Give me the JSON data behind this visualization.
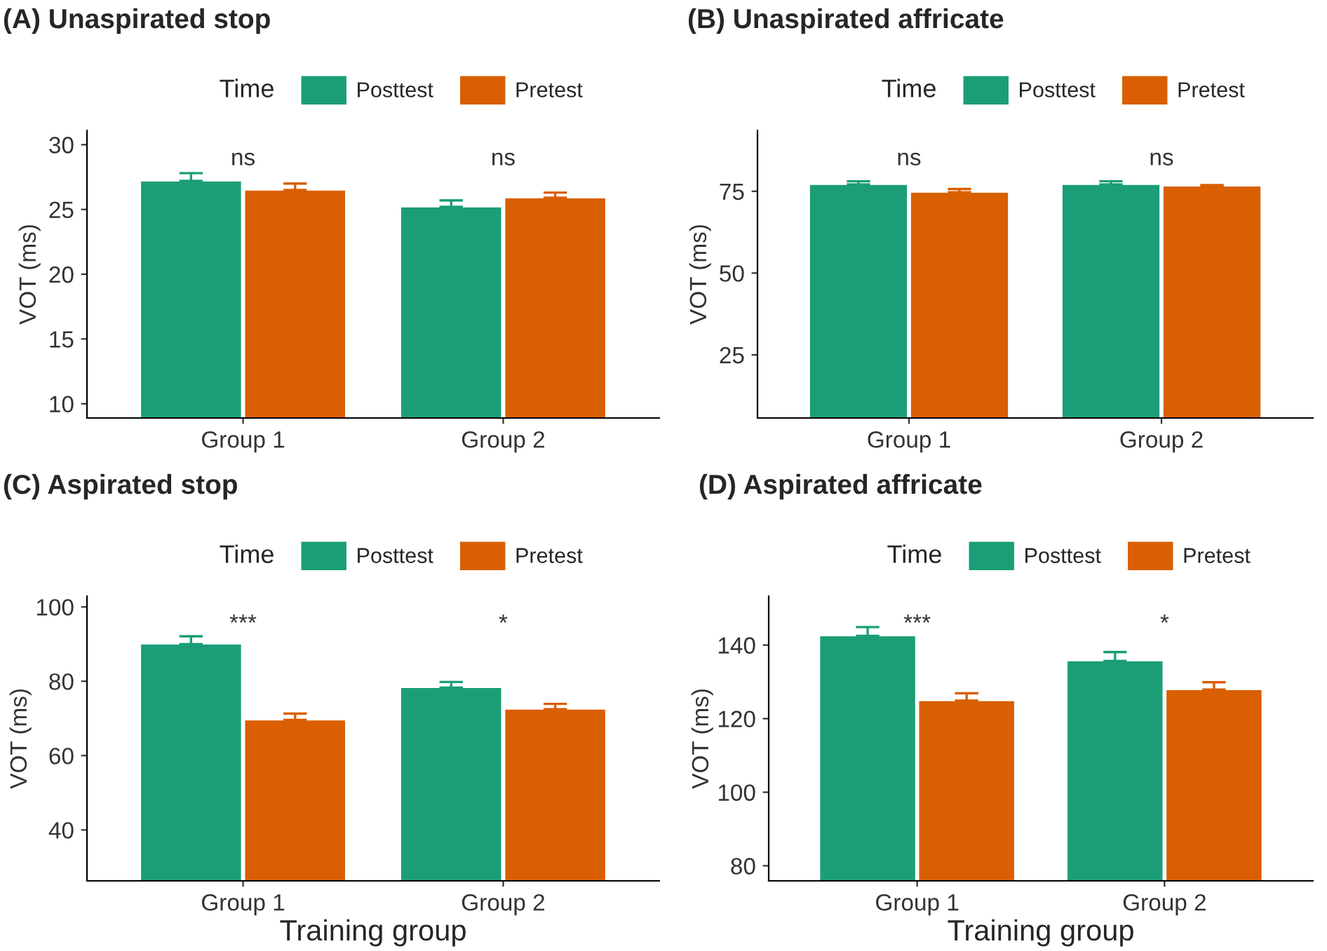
{
  "chart_data": [
    {
      "type": "bar",
      "title": "(A) Unaspirated stop",
      "ylabel": "VOT (ms)",
      "legend_title": "Time",
      "legend": "top",
      "grid": false,
      "categories": [
        "Group 1",
        "Group 2"
      ],
      "ylim": [
        8.9,
        31.1
      ],
      "yticks": [
        10,
        15,
        20,
        25,
        30
      ],
      "series": [
        {
          "name": "Posttest",
          "color": "#1b9e77",
          "values": [
            27.2,
            25.2
          ],
          "errors": [
            [
              27.2,
              27.8
            ],
            [
              25.2,
              25.7
            ]
          ]
        },
        {
          "name": "Pretest",
          "color": "#d95f02",
          "values": [
            26.5,
            25.9
          ],
          "errors": [
            [
              26.5,
              27.0
            ],
            [
              25.9,
              26.3
            ]
          ]
        }
      ],
      "annotations": [
        "ns",
        "ns"
      ]
    },
    {
      "type": "bar",
      "title": "(B) Unaspirated affricate",
      "ylabel": "VOT (ms)",
      "legend_title": "Time",
      "legend": "top",
      "grid": false,
      "categories": [
        "Group 1",
        "Group 2"
      ],
      "ylim": [
        5.7,
        93.6
      ],
      "yticks": [
        25,
        50,
        75
      ],
      "series": [
        {
          "name": "Posttest",
          "color": "#1b9e77",
          "values": [
            77.1,
            77.1
          ],
          "errors": [
            [
              77.1,
              78.1
            ],
            [
              77.1,
              78.1
            ]
          ]
        },
        {
          "name": "Pretest",
          "color": "#d95f02",
          "values": [
            74.7,
            76.6
          ],
          "errors": [
            [
              74.7,
              75.7
            ],
            [
              76.6,
              76.9
            ]
          ]
        }
      ],
      "annotations": [
        "ns",
        "ns"
      ]
    },
    {
      "type": "bar",
      "title": "(C) Aspirated stop",
      "xlabel": "Training group",
      "ylabel": "VOT (ms)",
      "legend_title": "Time",
      "legend": "top",
      "grid": false,
      "categories": [
        "Group 1",
        "Group 2"
      ],
      "ylim": [
        26.3,
        102.9
      ],
      "yticks": [
        40,
        60,
        80,
        100
      ],
      "series": [
        {
          "name": "Posttest",
          "color": "#1b9e77",
          "values": [
            90.0,
            78.3
          ],
          "errors": [
            [
              90.0,
              92.1
            ],
            [
              78.3,
              79.8
            ]
          ]
        },
        {
          "name": "Pretest",
          "color": "#d95f02",
          "values": [
            69.6,
            72.5
          ],
          "errors": [
            [
              69.6,
              71.3
            ],
            [
              72.5,
              73.9
            ]
          ]
        }
      ],
      "annotations": [
        "***",
        "*"
      ]
    },
    {
      "type": "bar",
      "title": "(D) Aspirated affricate",
      "xlabel": "Training group",
      "ylabel": "VOT (ms)",
      "legend_title": "Time",
      "legend": "top",
      "grid": false,
      "categories": [
        "Group 1",
        "Group 2"
      ],
      "ylim": [
        75.9,
        153.3
      ],
      "yticks": [
        80,
        100,
        120,
        140
      ],
      "series": [
        {
          "name": "Posttest",
          "color": "#1b9e77",
          "values": [
            142.5,
            135.7
          ],
          "errors": [
            [
              142.5,
              144.9
            ],
            [
              135.7,
              138.1
            ]
          ]
        },
        {
          "name": "Pretest",
          "color": "#d95f02",
          "values": [
            124.9,
            127.9
          ],
          "errors": [
            [
              124.9,
              126.9
            ],
            [
              127.9,
              129.9
            ]
          ]
        }
      ],
      "annotations": [
        "***",
        "*"
      ]
    }
  ]
}
